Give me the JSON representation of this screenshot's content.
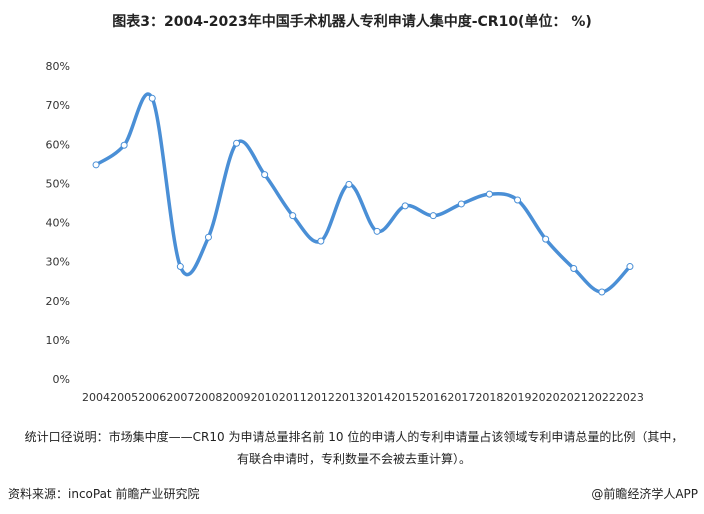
{
  "chart_data": {
    "type": "line",
    "title": "图表3：2004-2023年中国手术机器人专利申请人集中度-CR10(单位： %)",
    "categories": [
      "2004",
      "2005",
      "2006",
      "2007",
      "2008",
      "2009",
      "2010",
      "2011",
      "2012",
      "2013",
      "2014",
      "2015",
      "2016",
      "2017",
      "2018",
      "2019",
      "2020",
      "2021",
      "2022",
      "2023"
    ],
    "values": [
      55,
      60,
      72,
      29,
      36.5,
      60.5,
      52.5,
      42,
      35.5,
      50,
      38,
      44.5,
      42,
      45,
      47.5,
      46,
      36,
      28.5,
      22.5,
      29
    ],
    "color": "#4a8fd6",
    "ylim": [
      0,
      80
    ],
    "yticks": [
      {
        "value": 0,
        "label": "0%"
      },
      {
        "value": 10,
        "label": "10%"
      },
      {
        "value": 20,
        "label": "20%"
      },
      {
        "value": 30,
        "label": "30%"
      },
      {
        "value": 40,
        "label": "40%"
      },
      {
        "value": 50,
        "label": "50%"
      },
      {
        "value": 60,
        "label": "60%"
      },
      {
        "value": 70,
        "label": "70%"
      },
      {
        "value": 80,
        "label": "80%"
      }
    ],
    "note": "统计口径说明：市场集中度——CR10 为申请总量排名前 10 位的申请人的专利申请量占该领域专利申请总量的比例（其中，有联合申请时，专利数量不会被去重计算）。",
    "source": "资料来源：incoPat 前瞻产业研究院",
    "brand": "@前瞻经济学人APP"
  }
}
